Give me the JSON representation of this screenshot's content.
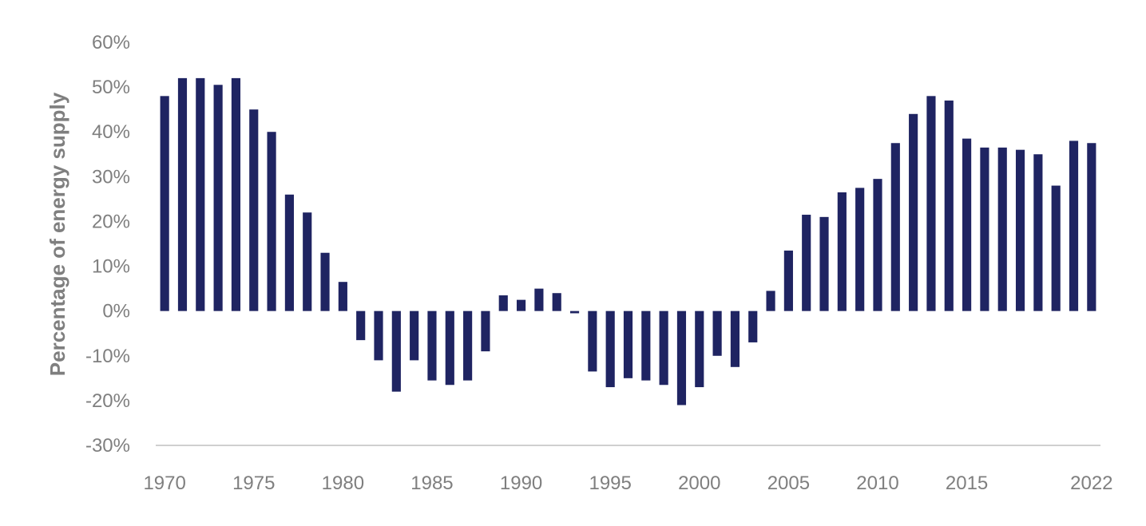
{
  "chart_data": {
    "type": "bar",
    "title": "",
    "xlabel": "",
    "ylabel": "Percentage of energy supply",
    "ylim": [
      -30,
      60
    ],
    "y_ticks": [
      60,
      50,
      40,
      30,
      20,
      10,
      0,
      -10,
      -20,
      -30
    ],
    "y_tick_labels": [
      "60%",
      "50%",
      "40%",
      "30%",
      "20%",
      "10%",
      "0%",
      "-10%",
      "-20%",
      "-30%"
    ],
    "x_tick_labels": [
      {
        "year": 1970,
        "label": "1970"
      },
      {
        "year": 1975,
        "label": "1975"
      },
      {
        "year": 1980,
        "label": "1980"
      },
      {
        "year": 1985,
        "label": "1985"
      },
      {
        "year": 1990,
        "label": "1990"
      },
      {
        "year": 1995,
        "label": "1995"
      },
      {
        "year": 2000,
        "label": "2000"
      },
      {
        "year": 2005,
        "label": "2005"
      },
      {
        "year": 2010,
        "label": "2010"
      },
      {
        "year": 2015,
        "label": "2015"
      },
      {
        "year": 2022,
        "label": "2022"
      }
    ],
    "grid": false,
    "legend": "none",
    "bar_color": "#1f2462",
    "axis_color": "#bfbfbf",
    "label_color": "#7f7f7f",
    "categories": [
      1970,
      1971,
      1972,
      1973,
      1974,
      1975,
      1976,
      1977,
      1978,
      1979,
      1980,
      1981,
      1982,
      1983,
      1984,
      1985,
      1986,
      1987,
      1988,
      1989,
      1990,
      1991,
      1992,
      1993,
      1994,
      1995,
      1996,
      1997,
      1998,
      1999,
      2000,
      2001,
      2002,
      2003,
      2004,
      2005,
      2006,
      2007,
      2008,
      2009,
      2010,
      2011,
      2012,
      2013,
      2014,
      2015,
      2016,
      2017,
      2018,
      2019,
      2020,
      2021,
      2022
    ],
    "values": [
      48,
      52,
      52,
      50.5,
      52,
      45,
      40,
      26,
      22,
      13,
      6.5,
      -6.5,
      -11,
      -18,
      -11,
      -15.5,
      -16.5,
      -15.5,
      -9,
      3.5,
      2.5,
      5,
      4,
      -0.5,
      -13.5,
      -17,
      -15,
      -15.5,
      -16.5,
      -21,
      -17,
      -10,
      -12.5,
      -7,
      4.5,
      13.5,
      21.5,
      21,
      26.5,
      27.5,
      29.5,
      37.5,
      44,
      48,
      47,
      38.5,
      36.5,
      36.5,
      36,
      35,
      28,
      38,
      37.5
    ]
  }
}
